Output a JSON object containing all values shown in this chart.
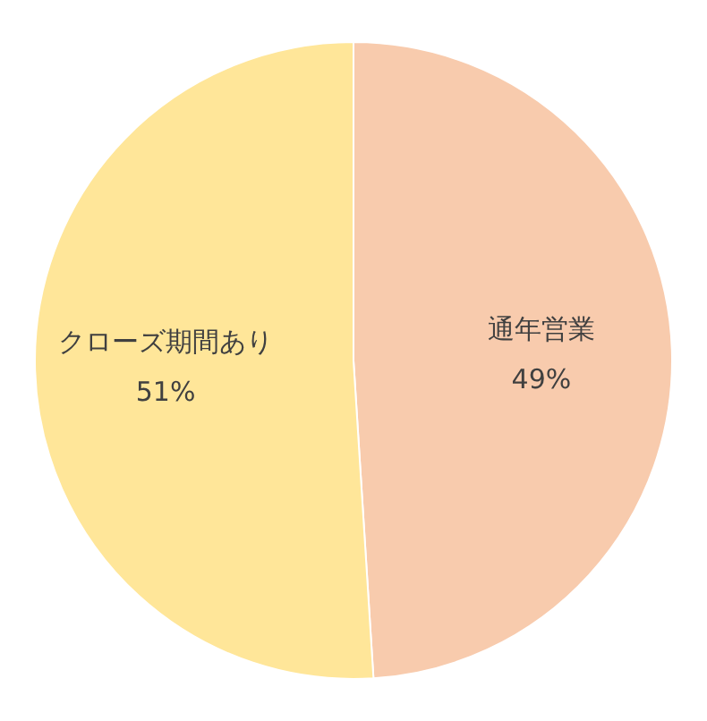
{
  "chart_data": {
    "type": "pie",
    "categories": [
      "通年営業",
      "クローズ期間あり"
    ],
    "values": [
      49,
      51
    ],
    "colors": [
      "#f8cbad",
      "#ffe699"
    ],
    "value_labels": [
      "49%",
      "51%"
    ]
  }
}
